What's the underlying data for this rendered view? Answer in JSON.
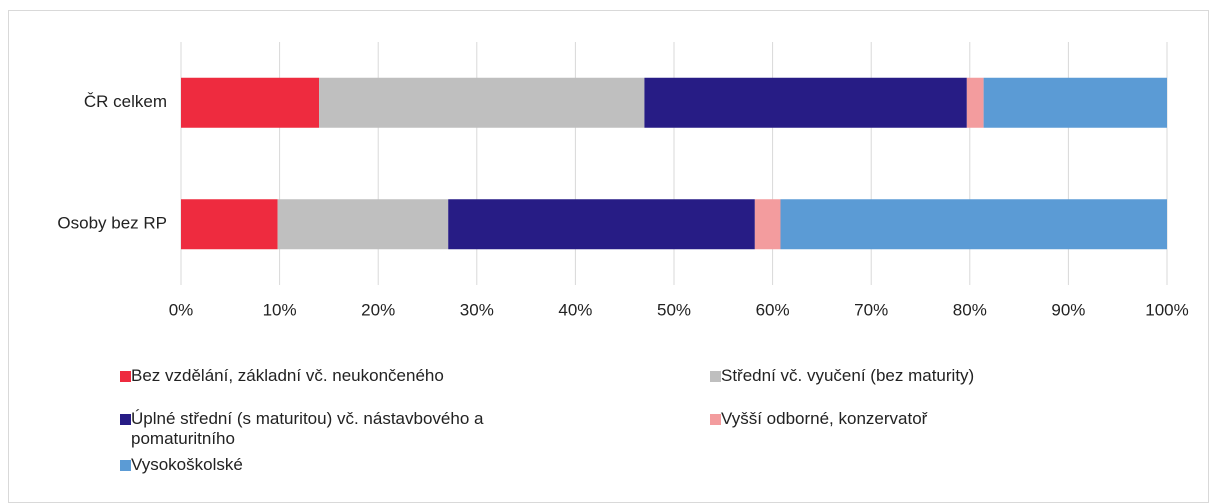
{
  "chart_data": {
    "type": "stacked_bar_horizontal",
    "categories": [
      "ČR celkem",
      "Osoby bez RP"
    ],
    "series": [
      {
        "name": "Bez vzdělání, základní vč. neukončeného",
        "color": "#ee2b3f",
        "values": [
          14.0,
          9.8
        ]
      },
      {
        "name": "Střední vč. vyučení (bez maturity)",
        "color": "#bfbfbf",
        "values": [
          33.0,
          17.3
        ]
      },
      {
        "name": "Úplné střední (s maturitou) vč. nástavbového a pomaturitního",
        "color": "#271c85",
        "values": [
          32.7,
          31.1
        ]
      },
      {
        "name": "Vyšší odborné, konzervatoř",
        "color": "#f39c9e",
        "values": [
          1.7,
          2.6
        ]
      },
      {
        "name": "Vysokoškolské",
        "color": "#5b9bd5",
        "values": [
          18.6,
          39.2
        ]
      }
    ],
    "xlim": [
      0,
      100
    ],
    "xticks": [
      {
        "value": 0,
        "label": "0%"
      },
      {
        "value": 10,
        "label": "10%"
      },
      {
        "value": 20,
        "label": "20%"
      },
      {
        "value": 30,
        "label": "30%"
      },
      {
        "value": 40,
        "label": "40%"
      },
      {
        "value": 50,
        "label": "50%"
      },
      {
        "value": 60,
        "label": "60%"
      },
      {
        "value": 70,
        "label": "70%"
      },
      {
        "value": 80,
        "label": "80%"
      },
      {
        "value": 90,
        "label": "90%"
      },
      {
        "value": 100,
        "label": "100%"
      }
    ],
    "grid": true
  }
}
